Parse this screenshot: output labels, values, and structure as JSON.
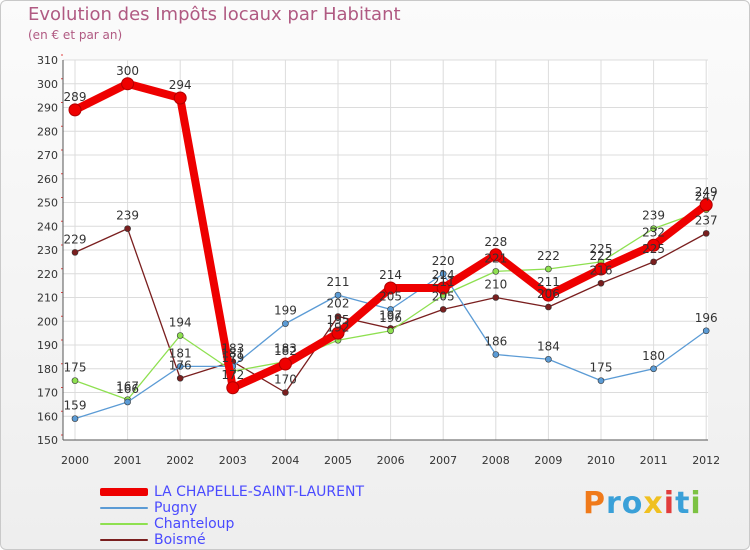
{
  "header": {
    "title": "Evolution des Impôts locaux par Habitant",
    "subtitle": "(en € et par an)"
  },
  "brand": {
    "text": "Proxiti",
    "letters": [
      {
        "ch": "P",
        "color": "#f07a1a"
      },
      {
        "ch": "r",
        "color": "#3aa0d8"
      },
      {
        "ch": "o",
        "color": "#3aa0d8"
      },
      {
        "ch": "x",
        "color": "#f0c020"
      },
      {
        "ch": "i",
        "color": "#e23c3c"
      },
      {
        "ch": "t",
        "color": "#3aa0d8"
      },
      {
        "ch": "i",
        "color": "#7cc242"
      }
    ]
  },
  "chart_data": {
    "type": "line",
    "title": "Evolution des Impôts locaux par Habitant",
    "subtitle": "(en € et par an)",
    "xlabel": "",
    "ylabel": "",
    "ylim": [
      150,
      310
    ],
    "ytick_step": 10,
    "grid": true,
    "categories": [
      "2000",
      "2001",
      "2002",
      "2003",
      "2004",
      "2005",
      "2006",
      "2007",
      "2008",
      "2009",
      "2010",
      "2011",
      "2012"
    ],
    "series": [
      {
        "name": "LA CHAPELLE-SAINT-LAURENT",
        "color": "#ee0000",
        "width": "thick",
        "values": [
          289,
          300,
          294,
          172,
          182,
          195,
          214,
          214,
          228,
          211,
          222,
          232,
          249
        ],
        "labels": [
          "289",
          "300",
          "294",
          "172",
          "182",
          "195",
          "214",
          "214",
          "228",
          "211",
          "222",
          "232",
          "249"
        ]
      },
      {
        "name": "Pugny",
        "color": "#5b9bd5",
        "width": "thin",
        "values": [
          159,
          166,
          181,
          181,
          199,
          211,
          205,
          220,
          186,
          184,
          175,
          180,
          196
        ],
        "labels": [
          "159",
          "166",
          "181",
          "181",
          "199",
          "211",
          "205",
          "220",
          "186",
          "184",
          "175",
          "180",
          "196"
        ]
      },
      {
        "name": "Chanteloup",
        "color": "#8ee050",
        "width": "thin",
        "values": [
          175,
          167,
          194,
          179,
          183,
          192,
          196,
          211,
          221,
          222,
          225,
          239,
          247
        ],
        "labels": [
          "175",
          "167",
          "194",
          "179",
          "183",
          "192",
          "196",
          "211",
          "221",
          "222",
          "225",
          "239",
          "247"
        ]
      },
      {
        "name": "Boismé",
        "color": "#7a1f1f",
        "width": "thin",
        "values": [
          229,
          239,
          176,
          183,
          170,
          202,
          197,
          205,
          210,
          206,
          216,
          225,
          237
        ],
        "labels": [
          "229",
          "239",
          "176",
          "183",
          "170",
          "202",
          "197",
          "205",
          "210",
          "206",
          "216",
          "225",
          "237"
        ]
      }
    ],
    "legend_position": "bottom-left"
  }
}
